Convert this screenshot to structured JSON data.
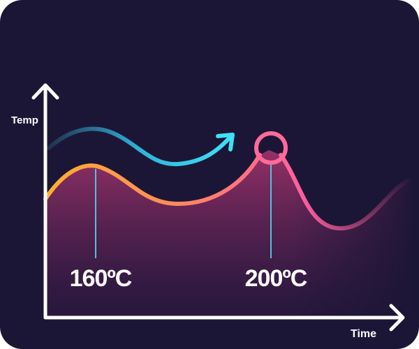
{
  "axes": {
    "y_label": "Temp",
    "x_label": "Time"
  },
  "annotations": [
    {
      "label": "160ºC"
    },
    {
      "label": "200ºC"
    }
  ]
}
